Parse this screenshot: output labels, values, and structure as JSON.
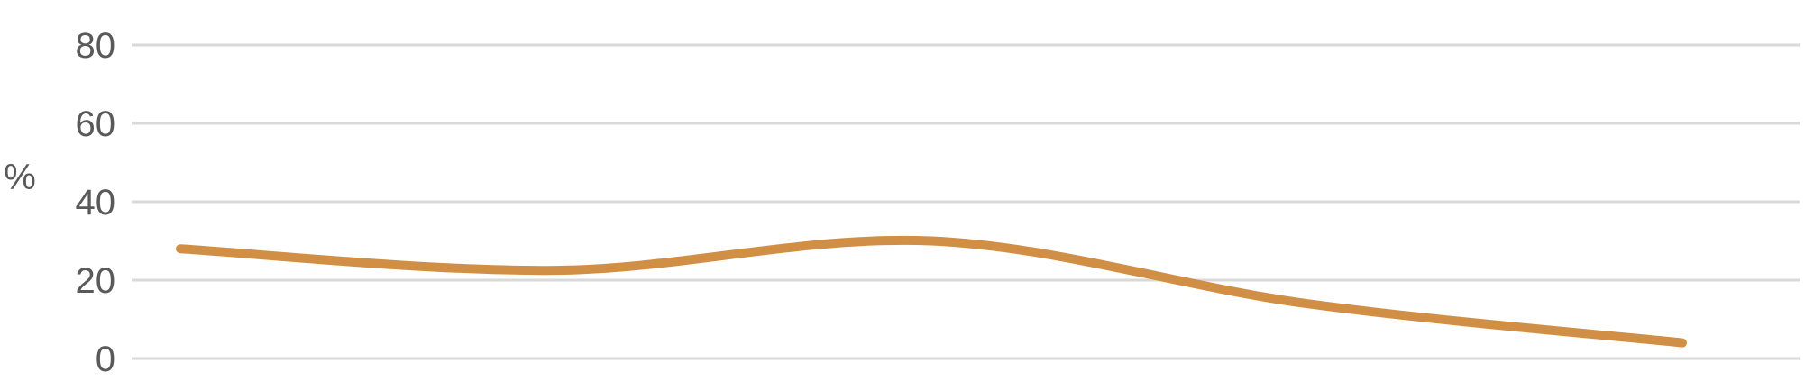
{
  "chart_data": {
    "type": "line",
    "title": "",
    "xlabel": "",
    "ylabel": "%",
    "ylim": [
      0,
      80
    ],
    "yticks": [
      0,
      20,
      40,
      60,
      80
    ],
    "grid": true,
    "smooth": true,
    "series": [
      {
        "color": "#D18E45",
        "values": [
          28,
          22.5,
          30,
          14,
          4
        ]
      }
    ]
  }
}
